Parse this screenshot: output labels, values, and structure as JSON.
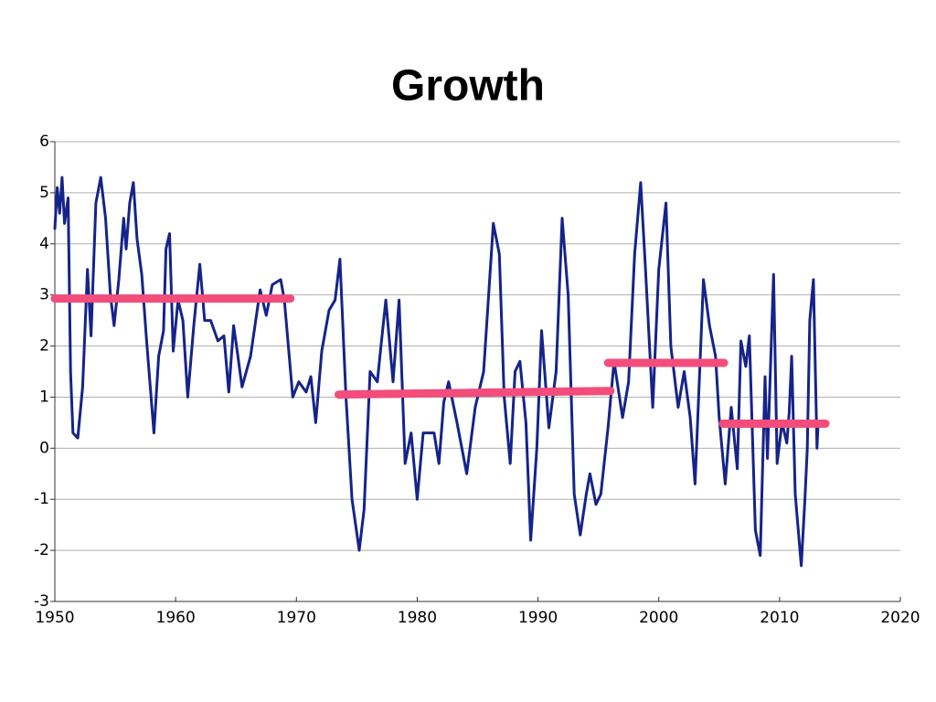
{
  "chart_data": {
    "type": "line",
    "title": "Growth",
    "xlim": [
      1950,
      2020
    ],
    "xticks": [
      1950,
      1960,
      1970,
      1980,
      1990,
      2000,
      2010,
      2020
    ],
    "ylim": [
      -3,
      6
    ],
    "yticks": [
      -3,
      -2,
      -1,
      0,
      1,
      2,
      3,
      4,
      5,
      6
    ],
    "grid": true,
    "series": [
      {
        "color": "#15238a",
        "x": [
          1950.0,
          1950.2,
          1950.4,
          1950.6,
          1950.8,
          1951.1,
          1951.3,
          1951.5,
          1951.9,
          1952.3,
          1952.7,
          1953.0,
          1953.4,
          1953.8,
          1954.2,
          1954.6,
          1954.9,
          1955.3,
          1955.7,
          1955.9,
          1956.2,
          1956.5,
          1956.8,
          1957.2,
          1957.6,
          1958.2,
          1958.6,
          1959.0,
          1959.2,
          1959.5,
          1959.8,
          1960.2,
          1960.6,
          1961.0,
          1961.5,
          1962.0,
          1962.4,
          1962.9,
          1963.5,
          1964.0,
          1964.4,
          1964.8,
          1965.1,
          1965.5,
          1966.2,
          1967.0,
          1967.5,
          1968.0,
          1968.7,
          1969.0,
          1969.7,
          1970.2,
          1970.8,
          1971.2,
          1971.6,
          1972.1,
          1972.7,
          1973.2,
          1973.6,
          1974.1,
          1974.6,
          1975.2,
          1975.6,
          1976.1,
          1976.7,
          1977.0,
          1977.4,
          1978.0,
          1978.5,
          1979.0,
          1979.5,
          1980.0,
          1980.5,
          1980.9,
          1981.4,
          1981.8,
          1982.2,
          1982.6,
          1983.3,
          1984.1,
          1984.8,
          1985.5,
          1986.3,
          1986.8,
          1987.2,
          1987.7,
          1988.1,
          1988.5,
          1989.0,
          1989.4,
          1989.9,
          1990.3,
          1990.9,
          1991.5,
          1992.0,
          1992.5,
          1993.0,
          1993.5,
          1994.0,
          1994.3,
          1994.8,
          1995.2,
          1995.8,
          1996.3,
          1997.0,
          1997.5,
          1998.0,
          1998.5,
          1998.9,
          1999.5,
          2000.0,
          2000.6,
          2001.0,
          2001.6,
          2002.1,
          2002.6,
          2003.0,
          2003.7,
          2004.2,
          2004.7,
          2005.0,
          2005.5,
          2006.0,
          2006.5,
          2006.8,
          2007.2,
          2007.5,
          2008.0,
          2008.4,
          2008.8,
          2009.0,
          2009.5,
          2009.8,
          2010.2,
          2010.6,
          2010.8,
          2011.0,
          2011.3,
          2011.8,
          2012.1,
          2012.3,
          2012.5,
          2012.8,
          2013.1,
          2013.2
        ],
        "values": [
          4.3,
          5.1,
          4.6,
          5.3,
          4.4,
          4.9,
          1.5,
          0.3,
          0.2,
          1.2,
          3.5,
          2.2,
          4.8,
          5.3,
          4.5,
          3.0,
          2.4,
          3.3,
          4.5,
          3.9,
          4.8,
          5.2,
          4.1,
          3.4,
          2.1,
          0.3,
          1.8,
          2.3,
          3.9,
          4.2,
          1.9,
          2.9,
          2.5,
          1.0,
          2.4,
          3.6,
          2.5,
          2.5,
          2.1,
          2.2,
          1.1,
          2.4,
          1.9,
          1.2,
          1.8,
          3.1,
          2.6,
          3.2,
          3.3,
          2.9,
          1.0,
          1.3,
          1.1,
          1.4,
          0.5,
          1.9,
          2.7,
          2.9,
          3.7,
          1.0,
          -1.0,
          -2.0,
          -1.2,
          1.5,
          1.3,
          2.0,
          2.9,
          1.3,
          2.9,
          -0.3,
          0.3,
          -1.0,
          0.3,
          0.3,
          0.3,
          -0.3,
          0.9,
          1.3,
          0.5,
          -0.5,
          0.8,
          1.5,
          4.4,
          3.8,
          1.0,
          -0.3,
          1.5,
          1.7,
          0.5,
          -1.8,
          0.0,
          2.3,
          0.4,
          1.5,
          4.5,
          3.0,
          -0.9,
          -1.7,
          -0.9,
          -0.5,
          -1.1,
          -0.9,
          0.4,
          1.7,
          0.6,
          1.3,
          3.8,
          5.2,
          3.5,
          0.8,
          3.5,
          4.8,
          2.0,
          0.8,
          1.5,
          0.6,
          -0.7,
          3.3,
          2.4,
          1.8,
          0.6,
          -0.7,
          0.8,
          -0.4,
          2.1,
          1.6,
          2.2,
          -1.6,
          -2.1,
          1.4,
          -0.2,
          3.4,
          -0.3,
          0.5,
          0.1,
          0.7,
          1.8,
          -0.9,
          -2.3,
          -1.0,
          0.0,
          2.5,
          3.3,
          0.0,
          0.5
        ]
      },
      {
        "color": "#f24d7b",
        "x": [
          1950.0,
          1969.5
        ],
        "values": [
          2.93,
          2.93
        ]
      },
      {
        "color": "#f24d7b",
        "x": [
          1973.5,
          1996.0
        ],
        "values": [
          1.05,
          1.12
        ]
      },
      {
        "color": "#f24d7b",
        "x": [
          1995.8,
          2005.4
        ],
        "values": [
          1.67,
          1.67
        ]
      },
      {
        "color": "#f24d7b",
        "x": [
          2005.3,
          2013.8
        ],
        "values": [
          0.48,
          0.48
        ]
      }
    ]
  }
}
